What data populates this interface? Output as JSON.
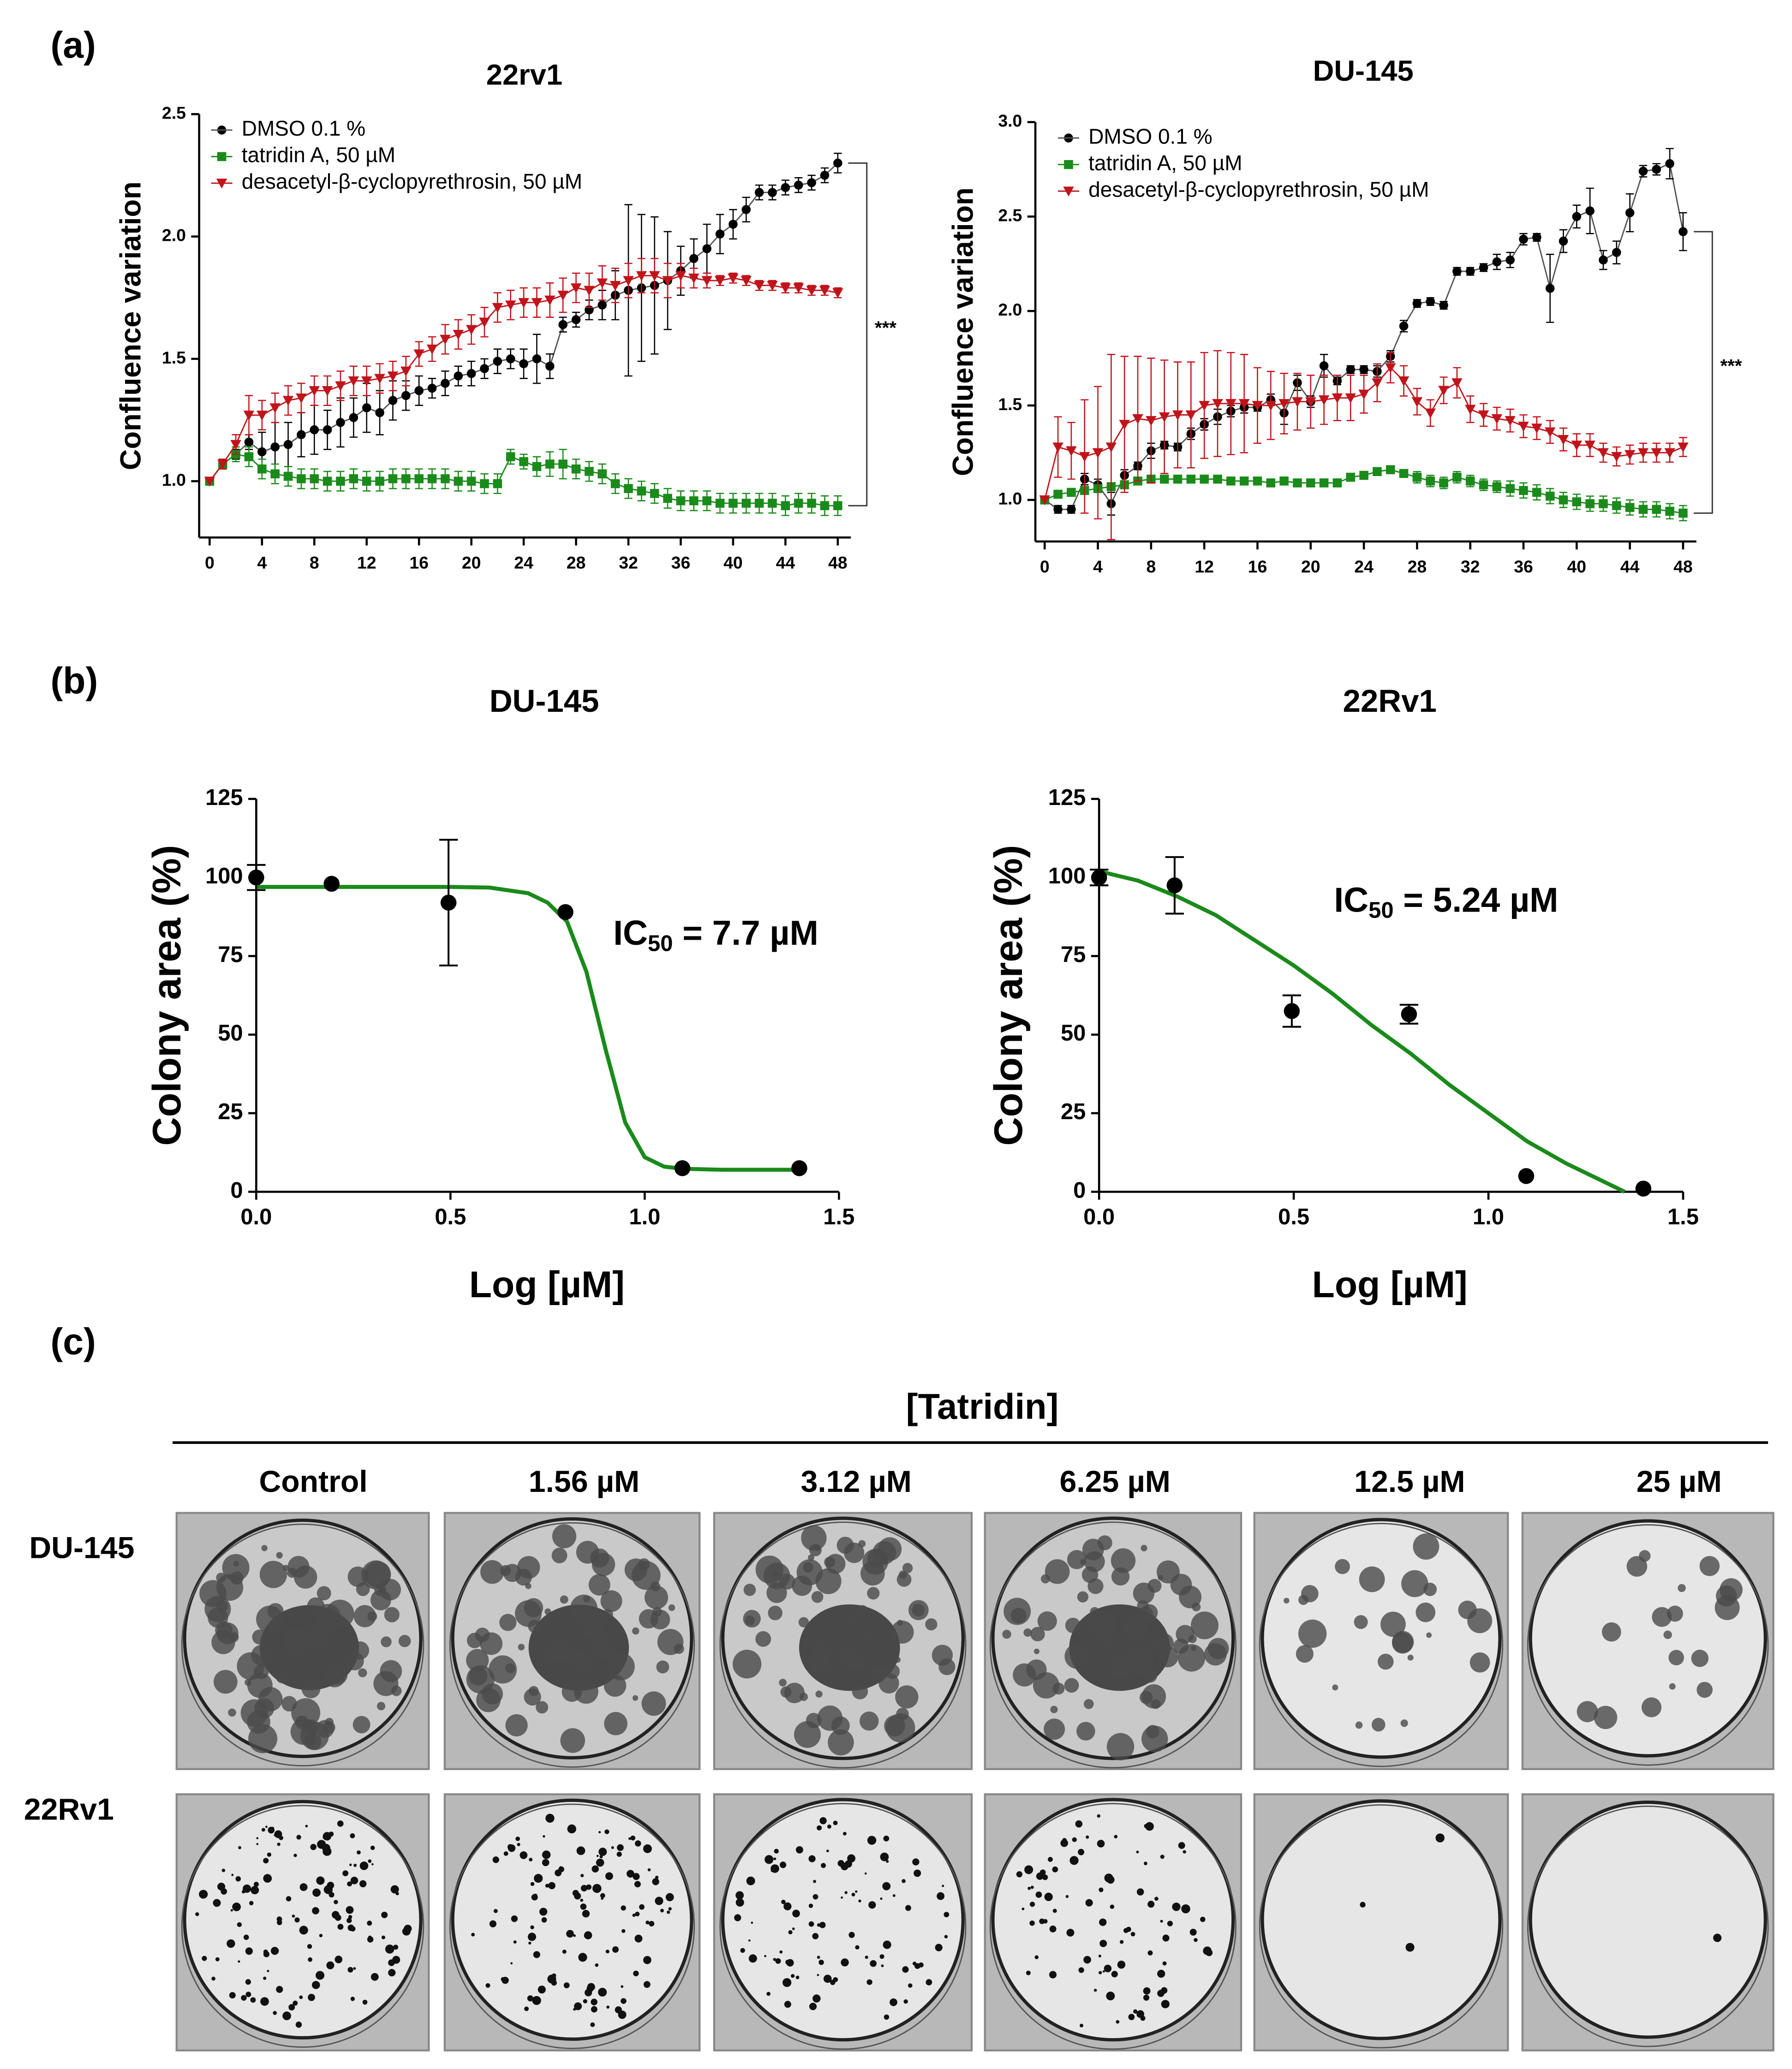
{
  "panel_labels": [
    "(a)",
    "(b)",
    "(c)"
  ],
  "chart_data": [
    {
      "type": "line",
      "title": "22rv1",
      "ylabel": "Confluence variation",
      "annotation": "***",
      "xlim": [
        -0.8,
        49
      ],
      "xticks": [
        0,
        4,
        8,
        12,
        16,
        20,
        24,
        28,
        32,
        36,
        40,
        44,
        48
      ],
      "ylim": [
        0.77,
        2.5
      ],
      "yticks": [
        {
          "value": 1,
          "label": "1.0"
        },
        1.5,
        {
          "value": 2,
          "label": "2.0"
        },
        2.5
      ],
      "x": [
        0,
        1,
        2,
        3,
        4,
        5,
        6,
        7,
        8,
        9,
        10,
        11,
        12,
        13,
        14,
        15,
        16,
        17,
        18,
        19,
        20,
        21,
        22,
        23,
        24,
        25,
        26,
        27,
        28,
        29,
        30,
        31,
        32,
        33,
        34,
        35,
        36,
        37,
        38,
        39,
        40,
        41,
        42,
        43,
        44,
        45,
        46,
        47,
        48
      ],
      "series": [
        {
          "name": "DMSO 0.1 %",
          "color": "#000000",
          "line_color": "#555555",
          "marker": "circle",
          "values": [
            1.0,
            1.07,
            1.11,
            1.16,
            1.12,
            1.14,
            1.15,
            1.19,
            1.21,
            1.21,
            1.24,
            1.26,
            1.3,
            1.28,
            1.33,
            1.35,
            1.37,
            1.38,
            1.4,
            1.43,
            1.44,
            1.46,
            1.49,
            1.5,
            1.48,
            1.5,
            1.47,
            1.64,
            1.66,
            1.7,
            1.72,
            1.76,
            1.78,
            1.79,
            1.8,
            1.82,
            1.86,
            1.91,
            1.95,
            2.01,
            2.05,
            2.11,
            2.18,
            2.18,
            2.2,
            2.21,
            2.22,
            2.25,
            2.3
          ],
          "errors": [
            0,
            0.02,
            0.02,
            0.03,
            0.08,
            0.1,
            0.09,
            0.09,
            0.1,
            0.08,
            0.1,
            0.08,
            0.1,
            0.09,
            0.08,
            0.06,
            0.06,
            0.04,
            0.05,
            0.04,
            0.05,
            0.04,
            0.05,
            0.04,
            0.06,
            0.1,
            0.05,
            0.03,
            0.03,
            0.04,
            0.06,
            0.1,
            0.35,
            0.3,
            0.28,
            0.2,
            0.1,
            0.08,
            0.1,
            0.08,
            0.06,
            0.05,
            0.03,
            0.03,
            0.03,
            0.03,
            0.03,
            0.03,
            0.04
          ]
        },
        {
          "name": "tatridin A, 50 µM",
          "color": "#1a8a1a",
          "line_color": "#1a8a1a",
          "marker": "square",
          "values": [
            1.0,
            1.07,
            1.11,
            1.1,
            1.05,
            1.03,
            1.02,
            1.01,
            1.01,
            1.0,
            1.0,
            1.01,
            1.0,
            1.0,
            1.01,
            1.01,
            1.01,
            1.01,
            1.01,
            1.0,
            1.0,
            0.99,
            0.99,
            1.1,
            1.08,
            1.06,
            1.07,
            1.07,
            1.05,
            1.04,
            1.03,
            0.99,
            0.97,
            0.96,
            0.95,
            0.93,
            0.92,
            0.92,
            0.92,
            0.91,
            0.91,
            0.91,
            0.91,
            0.91,
            0.9,
            0.91,
            0.91,
            0.9,
            0.9
          ],
          "errors": [
            0,
            0.02,
            0.03,
            0.04,
            0.04,
            0.04,
            0.04,
            0.04,
            0.04,
            0.04,
            0.04,
            0.04,
            0.04,
            0.04,
            0.04,
            0.04,
            0.04,
            0.04,
            0.04,
            0.04,
            0.04,
            0.04,
            0.04,
            0.03,
            0.03,
            0.04,
            0.05,
            0.06,
            0.04,
            0.04,
            0.04,
            0.04,
            0.04,
            0.04,
            0.04,
            0.04,
            0.04,
            0.04,
            0.04,
            0.04,
            0.04,
            0.04,
            0.04,
            0.04,
            0.04,
            0.04,
            0.04,
            0.04,
            0.04
          ]
        },
        {
          "name": "desacetyl-β-cyclopyrethrosin, 50 µM",
          "color": "#c0141b",
          "line_color": "#c0141b",
          "marker": "triangle-down",
          "values": [
            1.0,
            1.07,
            1.15,
            1.27,
            1.27,
            1.3,
            1.33,
            1.34,
            1.37,
            1.37,
            1.39,
            1.41,
            1.41,
            1.42,
            1.43,
            1.45,
            1.52,
            1.54,
            1.58,
            1.6,
            1.62,
            1.65,
            1.71,
            1.72,
            1.73,
            1.73,
            1.74,
            1.76,
            1.79,
            1.78,
            1.81,
            1.8,
            1.82,
            1.84,
            1.84,
            1.82,
            1.84,
            1.83,
            1.82,
            1.82,
            1.83,
            1.82,
            1.8,
            1.8,
            1.79,
            1.79,
            1.78,
            1.78,
            1.77
          ],
          "errors": [
            0,
            0.02,
            0.04,
            0.08,
            0.06,
            0.06,
            0.06,
            0.06,
            0.06,
            0.06,
            0.06,
            0.06,
            0.06,
            0.06,
            0.06,
            0.06,
            0.05,
            0.05,
            0.06,
            0.06,
            0.06,
            0.06,
            0.06,
            0.06,
            0.06,
            0.06,
            0.07,
            0.07,
            0.06,
            0.07,
            0.07,
            0.07,
            0.07,
            0.07,
            0.07,
            0.07,
            0.05,
            0.04,
            0.03,
            0.02,
            0.02,
            0.02,
            0.02,
            0.02,
            0.02,
            0.02,
            0.02,
            0.02,
            0.02
          ]
        }
      ]
    },
    {
      "type": "line",
      "title": "DU-145",
      "ylabel": "Confluence variation",
      "annotation": "***",
      "xlim": [
        -0.7,
        49
      ],
      "xticks": [
        0,
        4,
        8,
        12,
        16,
        20,
        24,
        28,
        32,
        36,
        40,
        44,
        48
      ],
      "ylim": [
        0.78,
        3.0
      ],
      "yticks": [
        {
          "value": 1,
          "label": "1.0"
        },
        1.5,
        {
          "value": 2,
          "label": "2.0"
        },
        2.5,
        {
          "value": 3,
          "label": "3.0"
        }
      ],
      "x": [
        0,
        1,
        2,
        3,
        4,
        5,
        6,
        7,
        8,
        9,
        10,
        11,
        12,
        13,
        14,
        15,
        16,
        17,
        18,
        19,
        20,
        21,
        22,
        23,
        24,
        25,
        26,
        27,
        28,
        29,
        30,
        31,
        32,
        33,
        34,
        35,
        36,
        37,
        38,
        39,
        40,
        41,
        42,
        43,
        44,
        45,
        46,
        47,
        48
      ],
      "series": [
        {
          "name": "DMSO 0.1 %",
          "color": "#000000",
          "line_color": "#555555",
          "marker": "circle",
          "values": [
            1.0,
            0.95,
            0.95,
            1.11,
            1.08,
            0.98,
            1.13,
            1.18,
            1.26,
            1.29,
            1.28,
            1.35,
            1.4,
            1.44,
            1.47,
            1.49,
            1.49,
            1.53,
            1.46,
            1.62,
            1.52,
            1.71,
            1.63,
            1.69,
            1.69,
            1.68,
            1.76,
            1.92,
            2.04,
            2.05,
            2.03,
            2.21,
            2.21,
            2.23,
            2.26,
            2.27,
            2.38,
            2.39,
            2.12,
            2.37,
            2.5,
            2.53,
            2.27,
            2.31,
            2.52,
            2.74,
            2.75,
            2.78,
            2.42
          ],
          "errors": [
            0,
            0.02,
            0.02,
            0.03,
            0.03,
            0.06,
            0.03,
            0.02,
            0.04,
            0.02,
            0.02,
            0.03,
            0.03,
            0.04,
            0.03,
            0.03,
            0.02,
            0.03,
            0.06,
            0.04,
            0.03,
            0.06,
            0.02,
            0.02,
            0.02,
            0.03,
            0.03,
            0.03,
            0.02,
            0.02,
            0.02,
            0.02,
            0.02,
            0.02,
            0.04,
            0.04,
            0.03,
            0.02,
            0.18,
            0.06,
            0.06,
            0.12,
            0.05,
            0.06,
            0.1,
            0.03,
            0.03,
            0.08,
            0.1
          ]
        },
        {
          "name": "tatridin A, 50 µM",
          "color": "#1a8a1a",
          "line_color": "#1a8a1a",
          "marker": "square",
          "values": [
            1.0,
            1.03,
            1.04,
            1.05,
            1.06,
            1.07,
            1.08,
            1.1,
            1.11,
            1.11,
            1.11,
            1.11,
            1.11,
            1.11,
            1.1,
            1.1,
            1.1,
            1.09,
            1.1,
            1.09,
            1.09,
            1.09,
            1.09,
            1.12,
            1.13,
            1.15,
            1.16,
            1.14,
            1.12,
            1.1,
            1.09,
            1.12,
            1.1,
            1.08,
            1.07,
            1.06,
            1.05,
            1.04,
            1.02,
            1.0,
            0.99,
            0.98,
            0.98,
            0.97,
            0.96,
            0.95,
            0.95,
            0.94,
            0.93
          ],
          "errors": [
            0,
            0.01,
            0.01,
            0.01,
            0.01,
            0.01,
            0.01,
            0.01,
            0.01,
            0.01,
            0.01,
            0.01,
            0.01,
            0.01,
            0.01,
            0.01,
            0.01,
            0.01,
            0.01,
            0.01,
            0.01,
            0.01,
            0.01,
            0.01,
            0.01,
            0.01,
            0.02,
            0.02,
            0.03,
            0.03,
            0.03,
            0.03,
            0.03,
            0.03,
            0.03,
            0.04,
            0.04,
            0.04,
            0.04,
            0.04,
            0.04,
            0.04,
            0.04,
            0.04,
            0.04,
            0.04,
            0.04,
            0.04,
            0.04
          ]
        },
        {
          "name": "desacetyl-β-cyclopyrethrosin, 50 µM",
          "color": "#c0141b",
          "line_color": "#c0141b",
          "marker": "triangle-down",
          "values": [
            1.0,
            1.28,
            1.26,
            1.23,
            1.25,
            1.28,
            1.4,
            1.43,
            1.42,
            1.44,
            1.45,
            1.45,
            1.5,
            1.51,
            1.51,
            1.51,
            1.5,
            1.5,
            1.51,
            1.52,
            1.52,
            1.53,
            1.54,
            1.54,
            1.56,
            1.62,
            1.7,
            1.63,
            1.52,
            1.46,
            1.58,
            1.62,
            1.48,
            1.45,
            1.43,
            1.42,
            1.39,
            1.38,
            1.36,
            1.32,
            1.29,
            1.29,
            1.25,
            1.23,
            1.24,
            1.25,
            1.25,
            1.25,
            1.28
          ],
          "errors": [
            0,
            0.16,
            0.15,
            0.3,
            0.35,
            0.49,
            0.36,
            0.33,
            0.33,
            0.3,
            0.28,
            0.28,
            0.28,
            0.28,
            0.27,
            0.26,
            0.2,
            0.18,
            0.16,
            0.15,
            0.14,
            0.13,
            0.12,
            0.12,
            0.1,
            0.1,
            0.08,
            0.08,
            0.07,
            0.07,
            0.07,
            0.08,
            0.07,
            0.06,
            0.06,
            0.06,
            0.06,
            0.06,
            0.06,
            0.06,
            0.06,
            0.06,
            0.05,
            0.05,
            0.05,
            0.05,
            0.05,
            0.05,
            0.05
          ]
        }
      ]
    },
    {
      "type": "scatter",
      "title": "DU-145",
      "xlabel": "Log [µM]",
      "ylabel": "Colony area (%)",
      "annotation": {
        "main": "IC",
        "sub": "50",
        "rest": " = 7.7 µM"
      },
      "xlim": [
        0,
        1.5
      ],
      "xticks": [
        {
          "value": 0,
          "label": "0.0"
        },
        0.5,
        {
          "value": 1,
          "label": "1.0"
        },
        1.5
      ],
      "ylim": [
        0,
        125
      ],
      "yticks": [
        0,
        25,
        50,
        75,
        100,
        125
      ],
      "points": {
        "color": "#000000",
        "x": [
          0,
          0.194,
          0.495,
          0.796,
          1.097,
          1.398
        ],
        "values": [
          100,
          98,
          92,
          89,
          7.5,
          7.5
        ],
        "errors": [
          4,
          0,
          20,
          0,
          0,
          0
        ]
      },
      "fit": {
        "color": "#1a8a1a",
        "x": [
          0,
          0.1,
          0.2,
          0.3,
          0.4,
          0.5,
          0.6,
          0.7,
          0.75,
          0.8,
          0.85,
          0.9,
          0.95,
          1.0,
          1.05,
          1.1,
          1.2,
          1.3,
          1.4
        ],
        "values": [
          97,
          97,
          97,
          97,
          97,
          97,
          96.8,
          95,
          92,
          86,
          70,
          45,
          22,
          11,
          8,
          7.3,
          7,
          7,
          7
        ]
      }
    },
    {
      "type": "scatter",
      "title": "22Rv1",
      "xlabel": "Log [µM]",
      "ylabel": "Colony area (%)",
      "annotation": {
        "main": "IC",
        "sub": "50",
        "rest": " = 5.24 µM"
      },
      "xlim": [
        0,
        1.5
      ],
      "xticks": [
        {
          "value": 0,
          "label": "0.0"
        },
        0.5,
        {
          "value": 1,
          "label": "1.0"
        },
        1.5
      ],
      "ylim": [
        0,
        125
      ],
      "yticks": [
        0,
        25,
        50,
        75,
        100,
        125
      ],
      "points": {
        "color": "#000000",
        "x": [
          0,
          0.194,
          0.495,
          0.796,
          1.097,
          1.398
        ],
        "values": [
          100,
          97.5,
          57.5,
          56.5,
          5,
          1
        ],
        "errors": [
          2.5,
          9,
          5,
          3,
          0,
          0
        ]
      },
      "fit": {
        "color": "#1a8a1a",
        "x": [
          0,
          0.1,
          0.2,
          0.3,
          0.4,
          0.5,
          0.6,
          0.7,
          0.8,
          0.9,
          1.0,
          1.1,
          1.2,
          1.3,
          1.35
        ],
        "values": [
          102,
          99,
          94,
          88,
          80,
          72,
          63,
          53,
          44,
          34,
          25,
          16,
          9,
          3,
          0
        ]
      }
    }
  ],
  "colony_panel": {
    "treatment": "[Tatridin]",
    "columns": [
      "Control",
      "1.56 µM",
      "3.12 µM",
      "6.25 µM",
      "12.5 µM",
      "25 µM"
    ],
    "rows": [
      "DU-145",
      "22Rv1"
    ]
  }
}
